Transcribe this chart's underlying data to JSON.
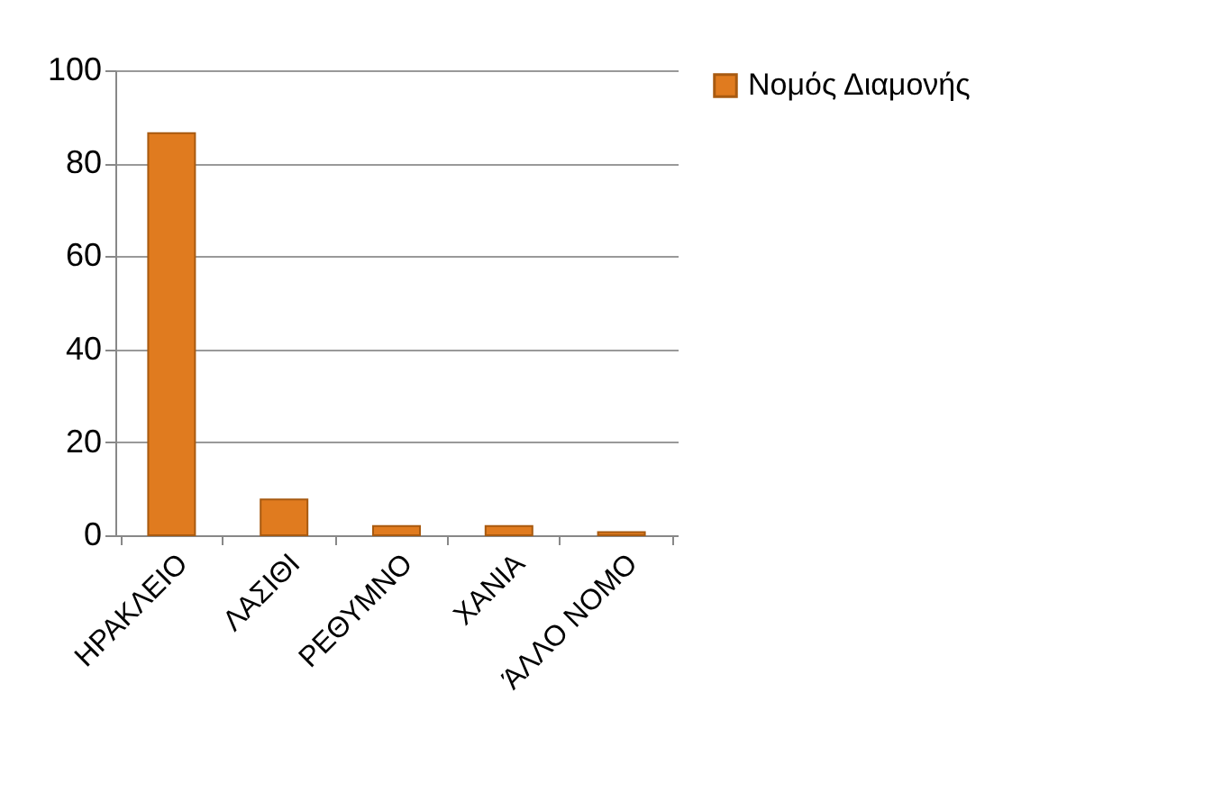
{
  "chart_data": {
    "type": "bar",
    "categories": [
      "ΗΡΑΚΛΕΙΟ",
      "ΛΑΣΙΘΙ",
      "ΡΕΘΥΜΝΟ",
      "ΧΑΝΙΑ",
      "ΆΛΛΟ ΝΟΜΟ"
    ],
    "series": [
      {
        "name": "Νομός Διαμονής",
        "color": "#e07b1f",
        "values": [
          86.5,
          7.7,
          2,
          2,
          0.7
        ]
      }
    ],
    "ylim": [
      0,
      100
    ],
    "yticks": [
      0,
      20,
      40,
      60,
      80,
      100
    ],
    "grid": "y",
    "legend": "right"
  }
}
